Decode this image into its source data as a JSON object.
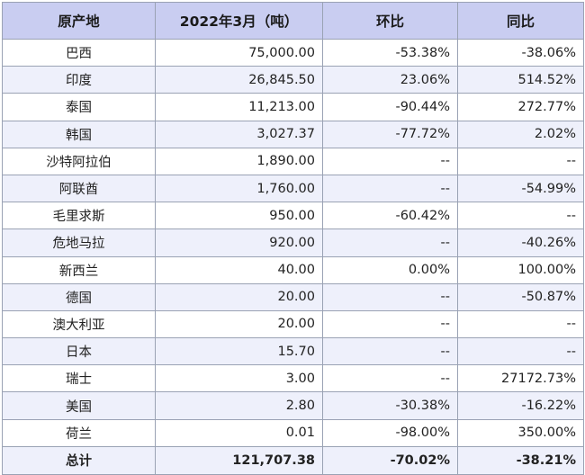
{
  "headers": [
    "原产地",
    "2022年3月（吨）",
    "环比",
    "同比"
  ],
  "rows": [
    {
      "origin": "巴西",
      "volume": "75,000.00",
      "mom": "-53.38%",
      "yoy": "-38.06%"
    },
    {
      "origin": "印度",
      "volume": "26,845.50",
      "mom": "23.06%",
      "yoy": "514.52%"
    },
    {
      "origin": "泰国",
      "volume": "11,213.00",
      "mom": "-90.44%",
      "yoy": "272.77%"
    },
    {
      "origin": "韩国",
      "volume": "3,027.37",
      "mom": "-77.72%",
      "yoy": "2.02%"
    },
    {
      "origin": "沙特阿拉伯",
      "volume": "1,890.00",
      "mom": "--",
      "yoy": "--"
    },
    {
      "origin": "阿联酋",
      "volume": "1,760.00",
      "mom": "--",
      "yoy": "-54.99%"
    },
    {
      "origin": "毛里求斯",
      "volume": "950.00",
      "mom": "-60.42%",
      "yoy": "--"
    },
    {
      "origin": "危地马拉",
      "volume": "920.00",
      "mom": "--",
      "yoy": "-40.26%"
    },
    {
      "origin": "新西兰",
      "volume": "40.00",
      "mom": "0.00%",
      "yoy": "100.00%"
    },
    {
      "origin": "德国",
      "volume": "20.00",
      "mom": "--",
      "yoy": "-50.87%"
    },
    {
      "origin": "澳大利亚",
      "volume": "20.00",
      "mom": "--",
      "yoy": "--"
    },
    {
      "origin": "日本",
      "volume": "15.70",
      "mom": "--",
      "yoy": "--"
    },
    {
      "origin": "瑞士",
      "volume": "3.00",
      "mom": "--",
      "yoy": "27172.73%"
    },
    {
      "origin": "美国",
      "volume": "2.80",
      "mom": "-30.38%",
      "yoy": "-16.22%"
    },
    {
      "origin": "荷兰",
      "volume": "0.01",
      "mom": "-98.00%",
      "yoy": "350.00%"
    }
  ],
  "total": {
    "origin": "总计",
    "volume": "121,707.38",
    "mom": "-70.02%",
    "yoy": "-38.21%"
  }
}
